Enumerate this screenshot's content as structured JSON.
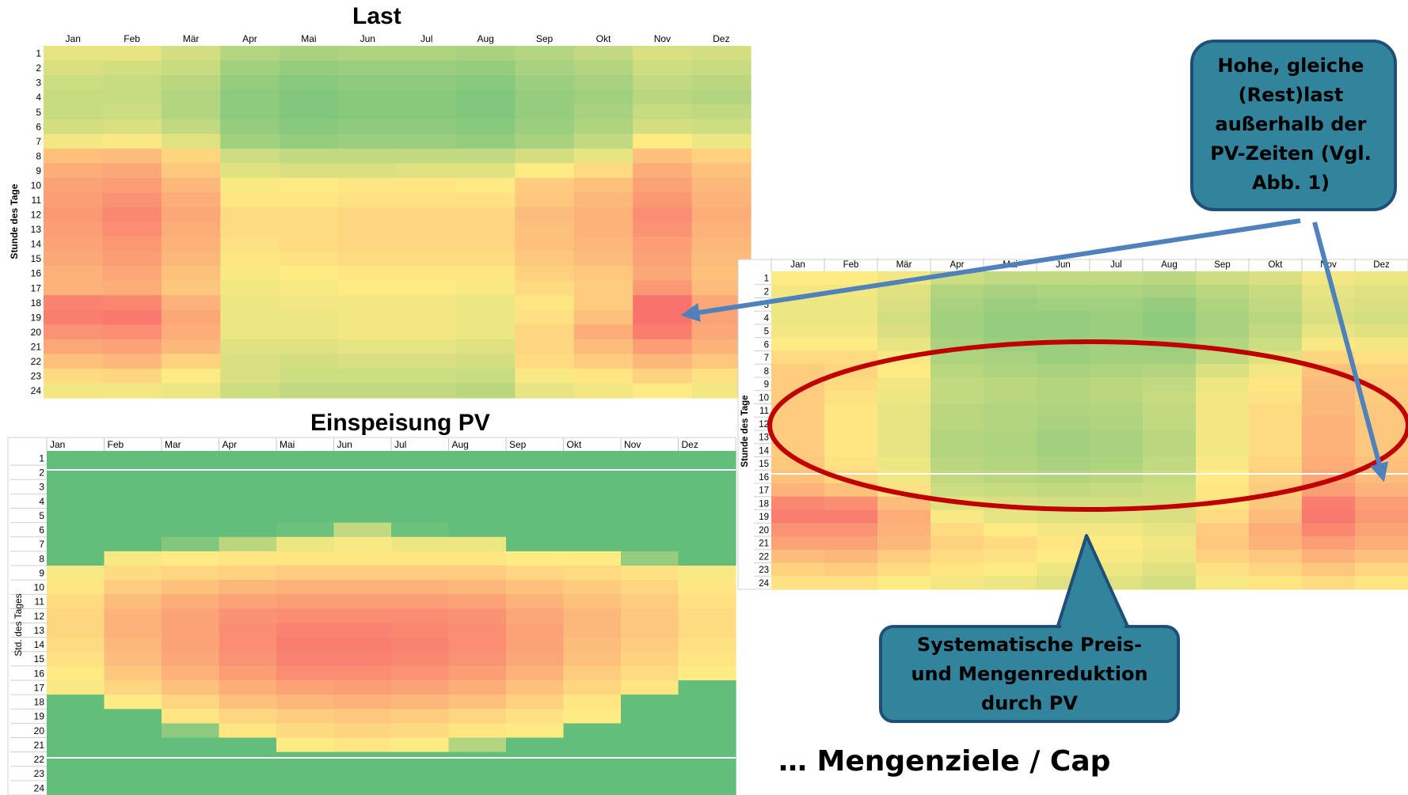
{
  "months": [
    "Jan",
    "Feb",
    "Mär",
    "Apr",
    "Mai",
    "Jun",
    "Jul",
    "Aug",
    "Sep",
    "Okt",
    "Nov",
    "Dez"
  ],
  "months_pv": [
    "Jan",
    "Feb",
    "Mar",
    "Apr",
    "Mai",
    "Jun",
    "Jul",
    "Aug",
    "Sep",
    "Okt",
    "Nov",
    "Dez"
  ],
  "hours": [
    "1",
    "2",
    "3",
    "4",
    "5",
    "6",
    "7",
    "8",
    "9",
    "10",
    "11",
    "12",
    "13",
    "14",
    "15",
    "16",
    "17",
    "18",
    "19",
    "20",
    "21",
    "22",
    "23",
    "24"
  ],
  "colors": {
    "low": "#63be7b",
    "mid": "#ffeb84",
    "high": "#f8696b",
    "callout_fill": "#31849b",
    "callout_border": "#1f4e79",
    "arrow": "#4f81bd",
    "ellipse": "#c00000"
  },
  "chart_data": [
    {
      "type": "heatmap",
      "title": "Last",
      "ylabel": "Stunde des Tage",
      "x": [
        "Jan",
        "Feb",
        "Mär",
        "Apr",
        "Mai",
        "Jun",
        "Jul",
        "Aug",
        "Sep",
        "Okt",
        "Nov",
        "Dez"
      ],
      "y": [
        "1",
        "2",
        "3",
        "4",
        "5",
        "6",
        "7",
        "8",
        "9",
        "10",
        "11",
        "12",
        "13",
        "14",
        "15",
        "16",
        "17",
        "18",
        "19",
        "20",
        "21",
        "22",
        "23",
        "24"
      ],
      "values": [
        [
          0.42,
          0.42,
          0.36,
          0.26,
          0.22,
          0.24,
          0.24,
          0.22,
          0.26,
          0.3,
          0.38,
          0.36
        ],
        [
          0.38,
          0.36,
          0.32,
          0.2,
          0.16,
          0.18,
          0.18,
          0.16,
          0.22,
          0.26,
          0.34,
          0.32
        ],
        [
          0.34,
          0.32,
          0.28,
          0.16,
          0.12,
          0.14,
          0.14,
          0.12,
          0.18,
          0.22,
          0.3,
          0.28
        ],
        [
          0.32,
          0.32,
          0.26,
          0.14,
          0.1,
          0.12,
          0.12,
          0.1,
          0.16,
          0.2,
          0.28,
          0.26
        ],
        [
          0.32,
          0.34,
          0.26,
          0.14,
          0.1,
          0.12,
          0.12,
          0.1,
          0.16,
          0.22,
          0.32,
          0.3
        ],
        [
          0.36,
          0.38,
          0.3,
          0.16,
          0.12,
          0.14,
          0.14,
          0.12,
          0.18,
          0.24,
          0.36,
          0.34
        ],
        [
          0.46,
          0.48,
          0.4,
          0.2,
          0.16,
          0.18,
          0.18,
          0.16,
          0.22,
          0.3,
          0.5,
          0.44
        ],
        [
          0.66,
          0.68,
          0.58,
          0.34,
          0.3,
          0.3,
          0.3,
          0.3,
          0.36,
          0.42,
          0.66,
          0.6
        ],
        [
          0.74,
          0.76,
          0.64,
          0.4,
          0.38,
          0.38,
          0.4,
          0.4,
          0.5,
          0.56,
          0.74,
          0.66
        ],
        [
          0.78,
          0.8,
          0.7,
          0.48,
          0.5,
          0.52,
          0.52,
          0.5,
          0.62,
          0.66,
          0.78,
          0.7
        ],
        [
          0.8,
          0.84,
          0.74,
          0.52,
          0.52,
          0.54,
          0.54,
          0.54,
          0.64,
          0.7,
          0.82,
          0.72
        ],
        [
          0.82,
          0.88,
          0.76,
          0.56,
          0.56,
          0.58,
          0.58,
          0.58,
          0.68,
          0.72,
          0.86,
          0.74
        ],
        [
          0.8,
          0.86,
          0.74,
          0.56,
          0.56,
          0.58,
          0.58,
          0.58,
          0.66,
          0.72,
          0.84,
          0.72
        ],
        [
          0.78,
          0.82,
          0.72,
          0.54,
          0.56,
          0.58,
          0.58,
          0.58,
          0.66,
          0.7,
          0.8,
          0.7
        ],
        [
          0.76,
          0.8,
          0.7,
          0.52,
          0.54,
          0.56,
          0.56,
          0.56,
          0.64,
          0.68,
          0.78,
          0.68
        ],
        [
          0.72,
          0.76,
          0.66,
          0.48,
          0.5,
          0.52,
          0.52,
          0.52,
          0.6,
          0.64,
          0.76,
          0.66
        ],
        [
          0.72,
          0.74,
          0.64,
          0.46,
          0.48,
          0.5,
          0.5,
          0.48,
          0.56,
          0.62,
          0.82,
          0.68
        ],
        [
          0.9,
          0.88,
          0.72,
          0.44,
          0.46,
          0.46,
          0.46,
          0.44,
          0.52,
          0.62,
          0.96,
          0.76
        ],
        [
          0.92,
          0.94,
          0.76,
          0.44,
          0.44,
          0.46,
          0.46,
          0.44,
          0.54,
          0.66,
          0.96,
          0.78
        ],
        [
          0.84,
          0.86,
          0.74,
          0.44,
          0.44,
          0.46,
          0.46,
          0.44,
          0.58,
          0.74,
          0.92,
          0.76
        ],
        [
          0.76,
          0.78,
          0.7,
          0.4,
          0.4,
          0.42,
          0.42,
          0.4,
          0.58,
          0.68,
          0.8,
          0.72
        ],
        [
          0.66,
          0.7,
          0.6,
          0.38,
          0.36,
          0.38,
          0.38,
          0.36,
          0.56,
          0.62,
          0.7,
          0.64
        ],
        [
          0.56,
          0.58,
          0.5,
          0.38,
          0.34,
          0.34,
          0.34,
          0.32,
          0.48,
          0.52,
          0.6,
          0.54
        ],
        [
          0.46,
          0.46,
          0.44,
          0.34,
          0.3,
          0.3,
          0.3,
          0.28,
          0.42,
          0.46,
          0.5,
          0.46
        ]
      ]
    },
    {
      "type": "heatmap",
      "title": "Einspeisung PV",
      "ylabel": "Std. des Tages",
      "x": [
        "Jan",
        "Feb",
        "Mar",
        "Apr",
        "Mai",
        "Jun",
        "Jul",
        "Aug",
        "Sep",
        "Okt",
        "Nov",
        "Dez"
      ],
      "y": [
        "1",
        "2",
        "3",
        "4",
        "5",
        "6",
        "7",
        "8",
        "9",
        "10",
        "11",
        "12",
        "13",
        "14",
        "15",
        "16",
        "17",
        "18",
        "19",
        "20",
        "21",
        "22",
        "23",
        "24"
      ],
      "values": [
        [
          0,
          0,
          0,
          0,
          0,
          0,
          0,
          0,
          0,
          0,
          0,
          0
        ],
        [
          0,
          0,
          0,
          0,
          0,
          0,
          0,
          0,
          0,
          0,
          0,
          0
        ],
        [
          0,
          0,
          0,
          0,
          0,
          0,
          0,
          0,
          0,
          0,
          0,
          0
        ],
        [
          0,
          0,
          0,
          0,
          0,
          0,
          0,
          0,
          0,
          0,
          0,
          0
        ],
        [
          0,
          0,
          0,
          0,
          0,
          0,
          0,
          0,
          0,
          0,
          0,
          0
        ],
        [
          0,
          0,
          0,
          0,
          0.03,
          0.3,
          0.03,
          0,
          0,
          0,
          0,
          0
        ],
        [
          0,
          0,
          0.1,
          0.28,
          0.44,
          0.48,
          0.44,
          0.44,
          0,
          0,
          0,
          0
        ],
        [
          0,
          0.48,
          0.5,
          0.52,
          0.52,
          0.52,
          0.52,
          0.52,
          0.5,
          0.5,
          0.16,
          0
        ],
        [
          0.48,
          0.56,
          0.58,
          0.6,
          0.62,
          0.62,
          0.62,
          0.62,
          0.58,
          0.56,
          0.54,
          0.48
        ],
        [
          0.52,
          0.62,
          0.66,
          0.7,
          0.72,
          0.72,
          0.72,
          0.7,
          0.66,
          0.62,
          0.58,
          0.52
        ],
        [
          0.56,
          0.68,
          0.74,
          0.78,
          0.8,
          0.8,
          0.8,
          0.78,
          0.72,
          0.66,
          0.62,
          0.54
        ],
        [
          0.58,
          0.72,
          0.78,
          0.84,
          0.86,
          0.86,
          0.86,
          0.84,
          0.76,
          0.7,
          0.64,
          0.56
        ],
        [
          0.58,
          0.72,
          0.78,
          0.86,
          0.9,
          0.9,
          0.88,
          0.86,
          0.78,
          0.7,
          0.64,
          0.56
        ],
        [
          0.56,
          0.7,
          0.78,
          0.86,
          0.92,
          0.92,
          0.9,
          0.86,
          0.78,
          0.68,
          0.62,
          0.54
        ],
        [
          0.54,
          0.68,
          0.76,
          0.84,
          0.9,
          0.9,
          0.88,
          0.84,
          0.76,
          0.66,
          0.6,
          0.52
        ],
        [
          0.5,
          0.64,
          0.72,
          0.8,
          0.86,
          0.86,
          0.84,
          0.8,
          0.72,
          0.62,
          0.56,
          0.5
        ],
        [
          0.48,
          0.58,
          0.66,
          0.74,
          0.78,
          0.8,
          0.78,
          0.74,
          0.66,
          0.58,
          0.52,
          0
        ],
        [
          0,
          0.5,
          0.58,
          0.66,
          0.7,
          0.72,
          0.7,
          0.66,
          0.6,
          0.52,
          0,
          0
        ],
        [
          0,
          0,
          0.52,
          0.58,
          0.62,
          0.64,
          0.62,
          0.58,
          0.54,
          0.5,
          0,
          0
        ],
        [
          0,
          0,
          0.14,
          0.52,
          0.56,
          0.58,
          0.56,
          0.52,
          0.5,
          0,
          0,
          0
        ],
        [
          0,
          0,
          0,
          0,
          0.5,
          0.52,
          0.5,
          0.26,
          0,
          0,
          0,
          0
        ],
        [
          0,
          0,
          0,
          0,
          0,
          0,
          0,
          0,
          0,
          0,
          0,
          0
        ],
        [
          0,
          0,
          0,
          0,
          0,
          0,
          0,
          0,
          0,
          0,
          0,
          0
        ],
        [
          0,
          0,
          0,
          0,
          0,
          0,
          0,
          0,
          0,
          0,
          0,
          0
        ]
      ]
    },
    {
      "type": "heatmap",
      "title": "",
      "ylabel": "Stunde des Tage",
      "x": [
        "Jan",
        "Feb",
        "Mär",
        "Apr",
        "Mai",
        "Jun",
        "Jul",
        "Aug",
        "Sep",
        "Okt",
        "Nov",
        "Dez"
      ],
      "y": [
        "1",
        "2",
        "3",
        "4",
        "5",
        "6",
        "7",
        "8",
        "9",
        "10",
        "11",
        "12",
        "13",
        "14",
        "15",
        "16",
        "17",
        "18",
        "19",
        "20",
        "21",
        "22",
        "23",
        "24"
      ],
      "values": [
        [
          0.5,
          0.5,
          0.46,
          0.34,
          0.3,
          0.3,
          0.3,
          0.28,
          0.34,
          0.38,
          0.46,
          0.44
        ],
        [
          0.46,
          0.46,
          0.4,
          0.26,
          0.22,
          0.24,
          0.24,
          0.22,
          0.28,
          0.32,
          0.42,
          0.4
        ],
        [
          0.44,
          0.44,
          0.38,
          0.22,
          0.18,
          0.2,
          0.2,
          0.16,
          0.24,
          0.3,
          0.4,
          0.38
        ],
        [
          0.44,
          0.44,
          0.36,
          0.2,
          0.16,
          0.16,
          0.18,
          0.14,
          0.22,
          0.28,
          0.38,
          0.36
        ],
        [
          0.46,
          0.46,
          0.38,
          0.2,
          0.16,
          0.16,
          0.18,
          0.14,
          0.22,
          0.3,
          0.42,
          0.4
        ],
        [
          0.5,
          0.5,
          0.42,
          0.22,
          0.18,
          0.18,
          0.2,
          0.18,
          0.26,
          0.34,
          0.48,
          0.46
        ],
        [
          0.56,
          0.56,
          0.48,
          0.24,
          0.22,
          0.18,
          0.2,
          0.2,
          0.3,
          0.4,
          0.58,
          0.54
        ],
        [
          0.62,
          0.58,
          0.5,
          0.28,
          0.24,
          0.22,
          0.24,
          0.26,
          0.38,
          0.46,
          0.66,
          0.6
        ],
        [
          0.62,
          0.56,
          0.46,
          0.3,
          0.28,
          0.26,
          0.28,
          0.3,
          0.44,
          0.52,
          0.68,
          0.62
        ],
        [
          0.62,
          0.54,
          0.44,
          0.3,
          0.28,
          0.26,
          0.28,
          0.32,
          0.46,
          0.54,
          0.7,
          0.62
        ],
        [
          0.62,
          0.52,
          0.42,
          0.28,
          0.26,
          0.24,
          0.26,
          0.3,
          0.46,
          0.56,
          0.7,
          0.64
        ],
        [
          0.62,
          0.52,
          0.42,
          0.28,
          0.26,
          0.22,
          0.24,
          0.3,
          0.46,
          0.56,
          0.72,
          0.64
        ],
        [
          0.62,
          0.52,
          0.42,
          0.26,
          0.24,
          0.2,
          0.22,
          0.28,
          0.46,
          0.56,
          0.72,
          0.64
        ],
        [
          0.62,
          0.52,
          0.42,
          0.26,
          0.24,
          0.2,
          0.22,
          0.28,
          0.46,
          0.56,
          0.72,
          0.64
        ],
        [
          0.64,
          0.54,
          0.44,
          0.28,
          0.26,
          0.22,
          0.24,
          0.3,
          0.48,
          0.58,
          0.74,
          0.66
        ],
        [
          0.66,
          0.58,
          0.46,
          0.3,
          0.28,
          0.26,
          0.28,
          0.32,
          0.5,
          0.6,
          0.76,
          0.68
        ],
        [
          0.72,
          0.66,
          0.54,
          0.34,
          0.32,
          0.3,
          0.32,
          0.34,
          0.52,
          0.62,
          0.8,
          0.72
        ],
        [
          0.88,
          0.86,
          0.68,
          0.4,
          0.38,
          0.36,
          0.36,
          0.36,
          0.52,
          0.64,
          0.92,
          0.8
        ],
        [
          0.92,
          0.92,
          0.74,
          0.48,
          0.42,
          0.4,
          0.4,
          0.38,
          0.56,
          0.68,
          0.94,
          0.82
        ],
        [
          0.84,
          0.84,
          0.72,
          0.56,
          0.5,
          0.46,
          0.46,
          0.42,
          0.62,
          0.74,
          0.88,
          0.78
        ],
        [
          0.78,
          0.78,
          0.7,
          0.6,
          0.56,
          0.52,
          0.5,
          0.46,
          0.64,
          0.72,
          0.8,
          0.74
        ],
        [
          0.68,
          0.7,
          0.62,
          0.56,
          0.54,
          0.5,
          0.48,
          0.44,
          0.6,
          0.64,
          0.72,
          0.66
        ],
        [
          0.6,
          0.62,
          0.56,
          0.52,
          0.5,
          0.44,
          0.44,
          0.4,
          0.54,
          0.58,
          0.64,
          0.58
        ],
        [
          0.54,
          0.54,
          0.5,
          0.46,
          0.44,
          0.4,
          0.4,
          0.36,
          0.48,
          0.52,
          0.56,
          0.52
        ]
      ]
    }
  ],
  "callout_top": {
    "lines": [
      "Hohe, gleiche",
      "(Rest)last",
      "außerhalb der",
      "PV-Zeiten (Vgl.",
      "Abb. 1)"
    ]
  },
  "callout_bottom": {
    "lines": [
      "Systematische  Preis-",
      "und Mengenreduktion",
      "durch PV"
    ]
  },
  "footer": "… Mengenziele / Cap"
}
